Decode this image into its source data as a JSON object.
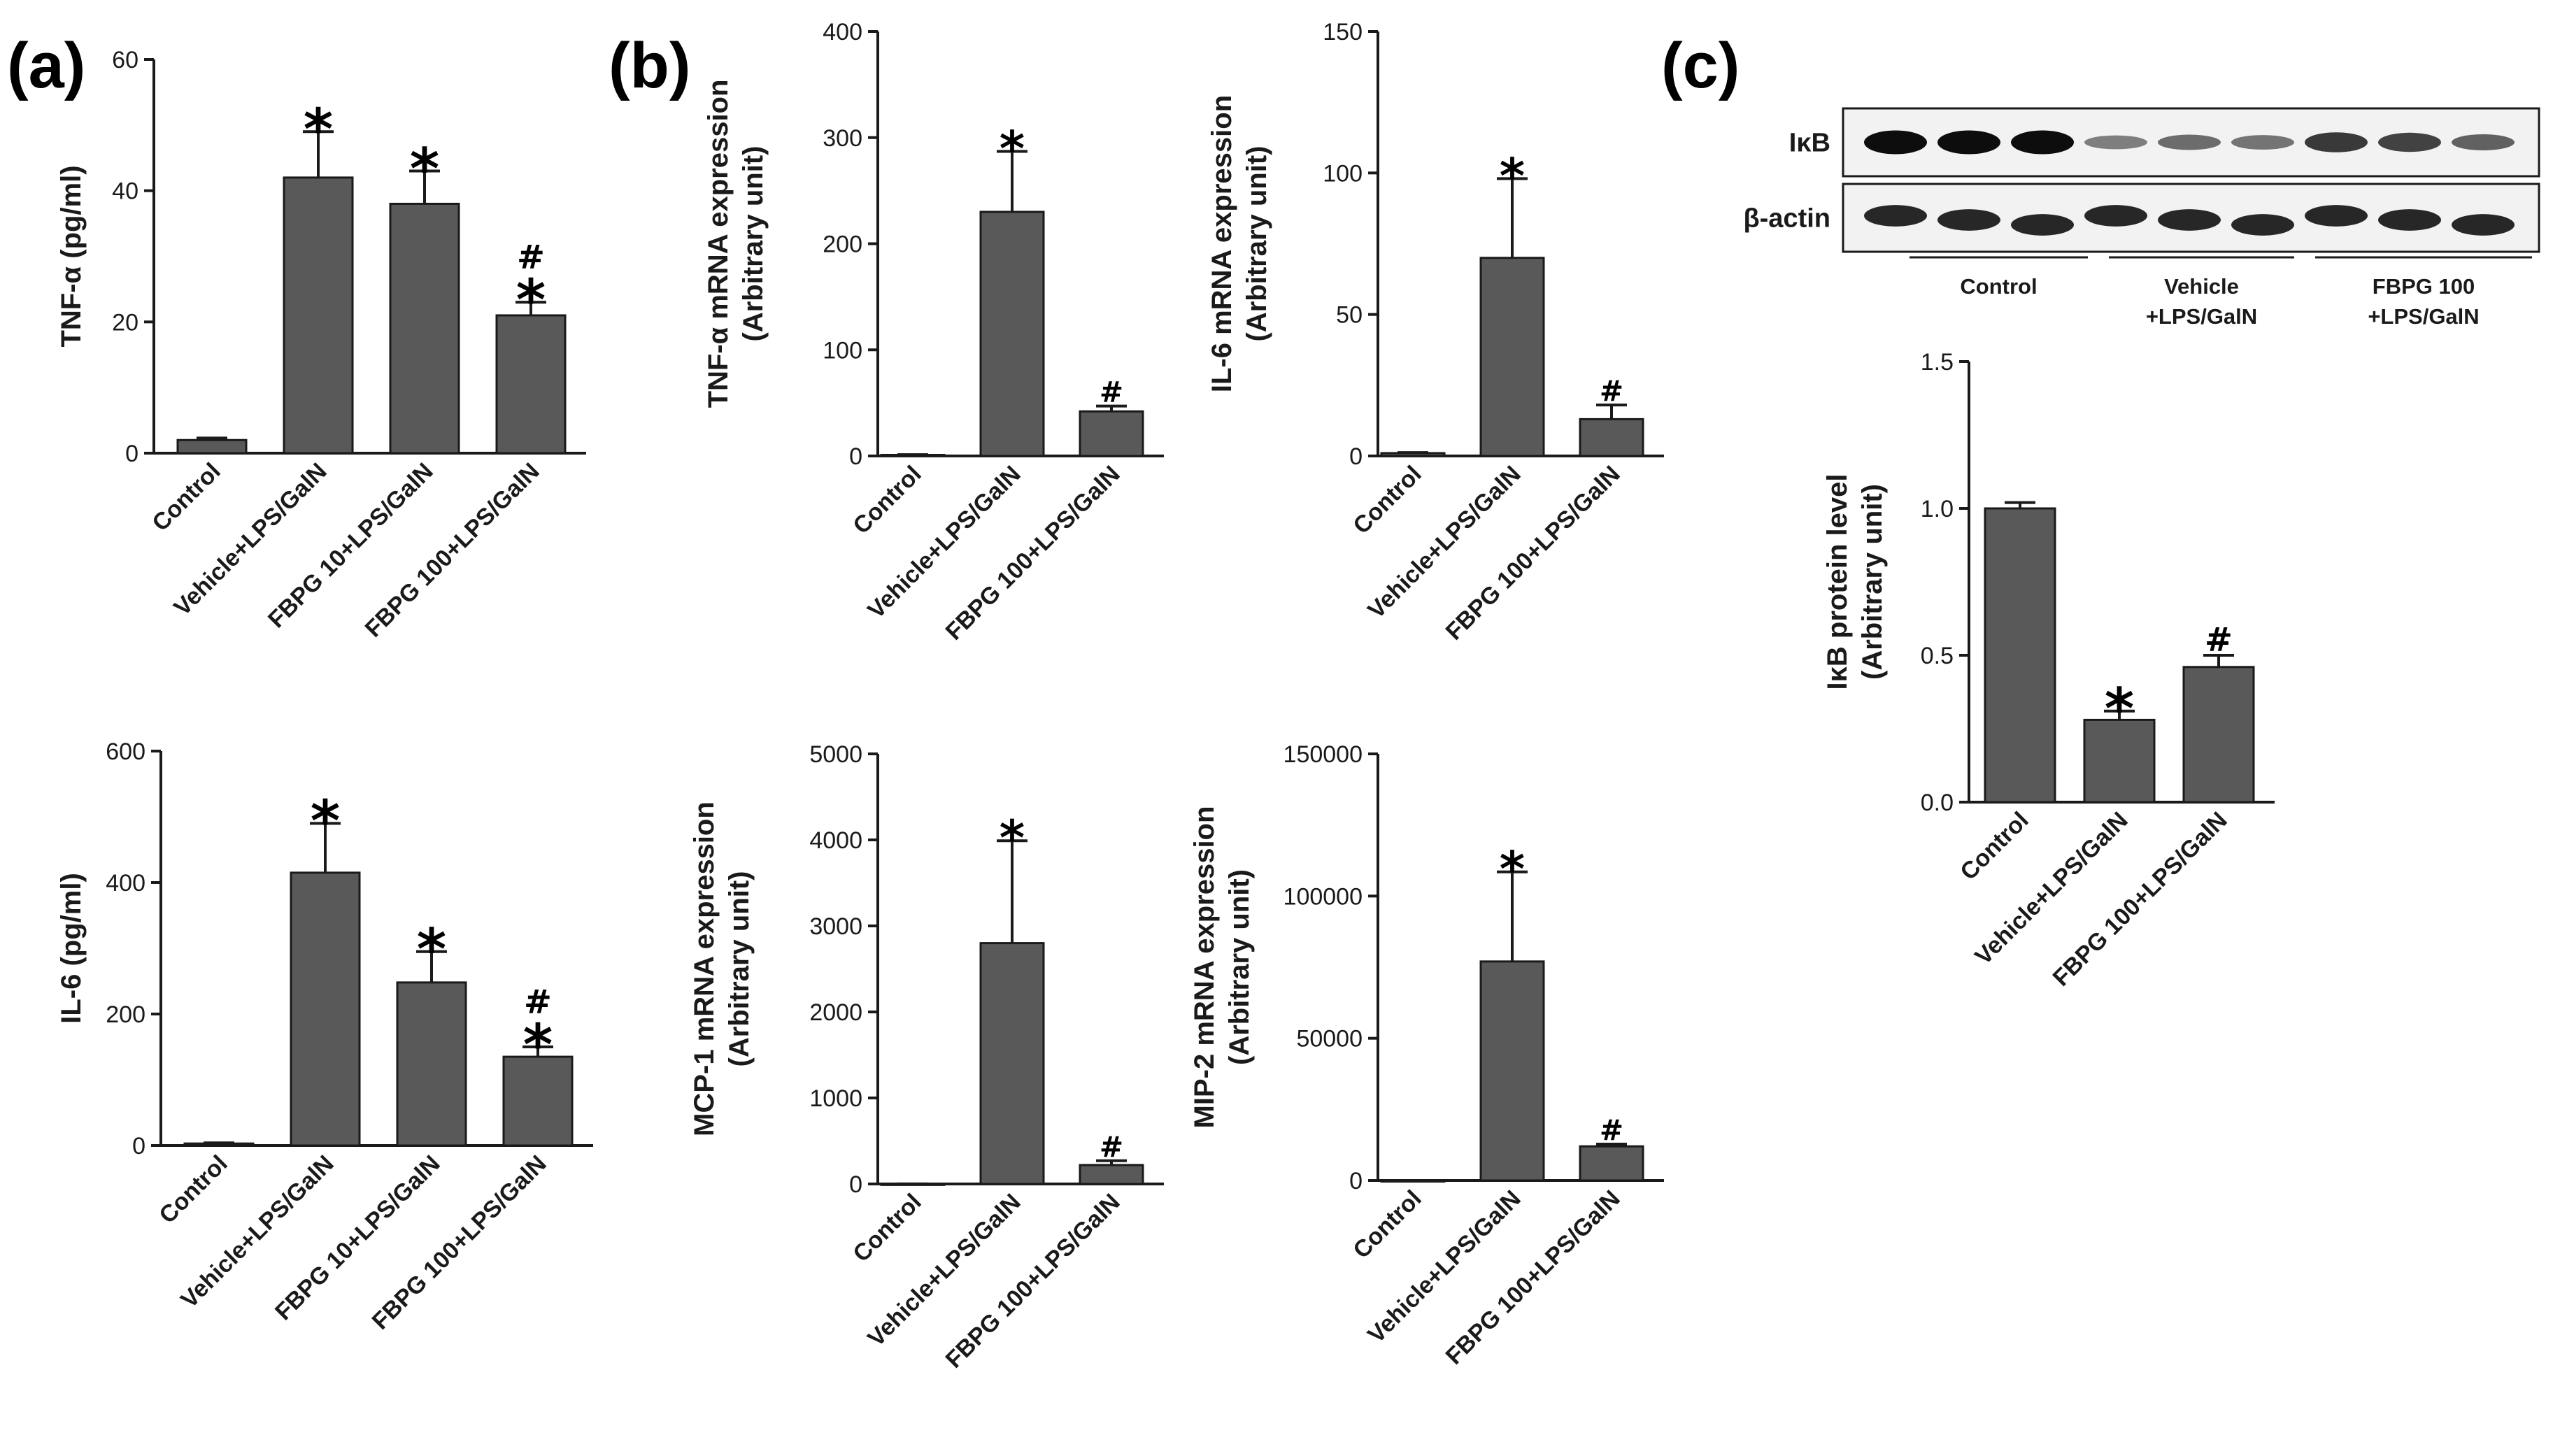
{
  "panels": {
    "a": "(a)",
    "b": "(b)",
    "c": "(c)"
  },
  "chart_data": [
    {
      "id": "tnf-protein",
      "panel": "a",
      "type": "bar",
      "ylabel": "TNF-α (pg/ml)",
      "ylim": [
        0,
        60
      ],
      "yticks": [
        "0",
        "20",
        "40",
        "60"
      ],
      "categories": [
        "Control",
        "Vehicle+LPS/GalN",
        "FBPG 10+LPS/GalN",
        "FBPG 100+LPS/GalN"
      ],
      "values": [
        2,
        42,
        38,
        21
      ],
      "errors": [
        0.3,
        7,
        5,
        2
      ],
      "annotations": [
        "",
        "*",
        "*",
        "#*"
      ]
    },
    {
      "id": "il6-protein",
      "panel": "a",
      "type": "bar",
      "ylabel": "IL-6 (pg/ml)",
      "ylim": [
        0,
        600
      ],
      "yticks": [
        "0",
        "200",
        "400",
        "600"
      ],
      "categories": [
        "Control",
        "Vehicle+LPS/GalN",
        "FBPG 10+LPS/GalN",
        "FBPG 100+LPS/GalN"
      ],
      "values": [
        3,
        415,
        248,
        135
      ],
      "errors": [
        1,
        75,
        47,
        15
      ],
      "annotations": [
        "",
        "*",
        "*",
        "#*"
      ]
    },
    {
      "id": "tnf-mrna",
      "panel": "b",
      "type": "bar",
      "ylabel": "TNF-α mRNA expression",
      "ylabel2": "(Arbitrary unit)",
      "ylim": [
        0,
        400
      ],
      "yticks": [
        "0",
        "100",
        "200",
        "300",
        "400"
      ],
      "categories": [
        "Control",
        "Vehicle+LPS/GalN",
        "FBPG 100+LPS/GalN"
      ],
      "values": [
        1,
        230,
        42
      ],
      "errors": [
        0.2,
        57,
        5
      ],
      "annotations": [
        "",
        "*",
        "#"
      ]
    },
    {
      "id": "il6-mrna",
      "panel": "b",
      "type": "bar",
      "ylabel": "IL-6 mRNA expression",
      "ylabel2": "(Arbitrary unit)",
      "ylim": [
        0,
        150
      ],
      "yticks": [
        "0",
        "50",
        "100",
        "150"
      ],
      "categories": [
        "Control",
        "Vehicle+LPS/GalN",
        "FBPG 100+LPS/GalN"
      ],
      "values": [
        1,
        70,
        13
      ],
      "errors": [
        0.2,
        28,
        5
      ],
      "annotations": [
        "",
        "*",
        "#"
      ]
    },
    {
      "id": "mcp1-mrna",
      "panel": "b",
      "type": "bar",
      "ylabel": "MCP-1 mRNA expression",
      "ylabel2": "(Arbitrary unit)",
      "ylim": [
        0,
        5000
      ],
      "yticks": [
        "0",
        "1000",
        "2000",
        "3000",
        "4000",
        "5000"
      ],
      "categories": [
        "Control",
        "Vehicle+LPS/GalN",
        "FBPG 100+LPS/GalN"
      ],
      "values": [
        1,
        2800,
        220
      ],
      "errors": [
        0.5,
        1190,
        50
      ],
      "annotations": [
        "",
        "*",
        "#"
      ]
    },
    {
      "id": "mip2-mrna",
      "panel": "b",
      "type": "bar",
      "ylabel": "MIP-2 mRNA expression",
      "ylabel2": "(Arbitrary unit)",
      "ylim": [
        0,
        150000
      ],
      "yticks": [
        "0",
        "50000",
        "100000",
        "150000"
      ],
      "categories": [
        "Control",
        "Vehicle+LPS/GalN",
        "FBPG 100+LPS/GalN"
      ],
      "values": [
        1,
        77000,
        12000
      ],
      "errors": [
        1,
        31500,
        800
      ],
      "annotations": [
        "",
        "*",
        "#"
      ]
    },
    {
      "id": "ikb-protein",
      "panel": "c",
      "type": "bar",
      "ylabel": "IκB protein level",
      "ylabel2": "(Arbitrary unit)",
      "ylim": [
        0,
        1.5
      ],
      "yticks": [
        "0.0",
        "0.5",
        "1.0",
        "1.5"
      ],
      "categories": [
        "Control",
        "Vehicle+LPS/GalN",
        "FBPG 100+LPS/GalN"
      ],
      "values": [
        1.0,
        0.28,
        0.46
      ],
      "errors": [
        0.02,
        0.03,
        0.04
      ],
      "annotations": [
        "",
        "*",
        "#"
      ]
    }
  ],
  "blot": {
    "rows": [
      {
        "label": "IκB",
        "intensities": [
          1.0,
          1.0,
          1.0,
          0.35,
          0.45,
          0.4,
          0.75,
          0.7,
          0.5
        ]
      },
      {
        "label": "β-actin",
        "intensities": [
          0.85,
          0.85,
          0.85,
          0.85,
          0.85,
          0.85,
          0.85,
          0.85,
          0.85
        ]
      }
    ],
    "groups": [
      {
        "line1": "Control",
        "line2": ""
      },
      {
        "line1": "Vehicle",
        "line2": "+LPS/GalN"
      },
      {
        "line1": "FBPG 100",
        "line2": "+LPS/GalN"
      }
    ]
  }
}
